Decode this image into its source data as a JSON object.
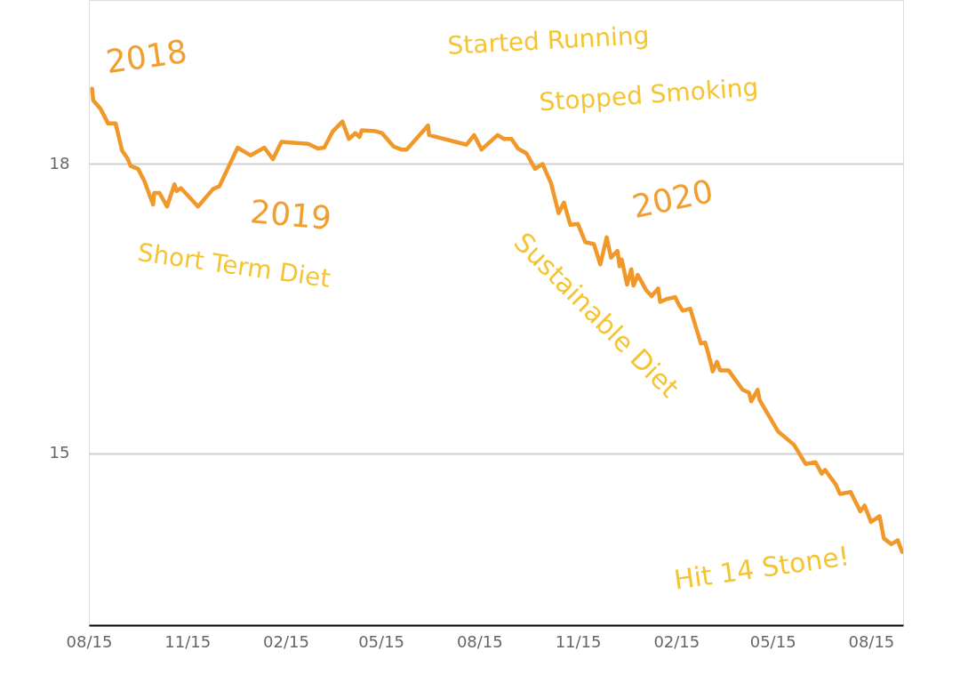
{
  "chart_data": {
    "type": "line",
    "x": [
      "2018-08-18",
      "2018-08-19",
      "2018-08-26",
      "2018-09-02",
      "2018-09-09",
      "2018-09-15",
      "2018-09-20",
      "2018-09-23",
      "2018-09-30",
      "2018-10-06",
      "2018-10-14",
      "2018-10-15",
      "2018-10-20",
      "2018-10-27",
      "2018-11-03",
      "2018-11-05",
      "2018-11-09",
      "2018-11-25",
      "2018-12-09",
      "2018-12-15",
      "2019-01-01",
      "2019-01-13",
      "2019-01-26",
      "2019-02-03",
      "2019-02-11",
      "2019-03-08",
      "2019-03-17",
      "2019-03-23",
      "2019-03-31",
      "2019-04-09",
      "2019-04-15",
      "2019-04-21",
      "2019-04-25",
      "2019-04-27",
      "2019-05-10",
      "2019-05-16",
      "2019-05-27",
      "2019-06-03",
      "2019-06-08",
      "2019-06-28",
      "2019-06-29",
      "2019-08-03",
      "2019-08-10",
      "2019-08-17",
      "2019-09-01",
      "2019-09-07",
      "2019-09-14",
      "2019-09-20",
      "2019-09-28",
      "2019-10-06",
      "2019-10-13",
      "2019-10-21",
      "2019-10-28",
      "2019-11-02",
      "2019-11-08",
      "2019-11-15",
      "2019-11-22",
      "2019-11-30",
      "2019-12-06",
      "2019-12-12",
      "2019-12-16",
      "2019-12-22",
      "2019-12-24",
      "2019-12-26",
      "2019-12-31",
      "2020-01-04",
      "2020-01-06",
      "2020-01-10",
      "2020-01-18",
      "2020-01-23",
      "2020-01-29",
      "2020-01-31",
      "2020-02-06",
      "2020-02-14",
      "2020-02-17",
      "2020-02-21",
      "2020-02-28",
      "2020-03-04",
      "2020-03-09",
      "2020-03-13",
      "2020-03-18",
      "2020-03-20",
      "2020-03-24",
      "2020-03-27",
      "2020-04-04",
      "2020-04-17",
      "2020-04-23",
      "2020-04-25",
      "2020-05-01",
      "2020-05-03",
      "2020-05-20",
      "2020-06-04",
      "2020-06-15",
      "2020-06-24",
      "2020-06-30",
      "2020-07-03",
      "2020-07-13",
      "2020-07-17",
      "2020-07-27",
      "2020-07-31",
      "2020-08-05",
      "2020-08-09",
      "2020-08-15",
      "2020-08-23",
      "2020-08-27",
      "2020-09-03",
      "2020-09-09",
      "2020-09-13"
    ],
    "series": [
      {
        "color": "#f0982a",
        "values": [
          18.78,
          18.66,
          18.57,
          18.42,
          18.42,
          18.14,
          18.06,
          17.98,
          17.95,
          17.82,
          17.58,
          17.7,
          17.7,
          17.56,
          17.79,
          17.72,
          17.75,
          17.56,
          17.74,
          17.77,
          18.17,
          18.09,
          18.17,
          18.05,
          18.23,
          18.21,
          18.16,
          18.17,
          18.34,
          18.44,
          18.26,
          18.32,
          18.28,
          18.35,
          18.34,
          18.32,
          18.18,
          18.15,
          18.15,
          18.4,
          18.3,
          18.2,
          18.3,
          18.15,
          18.3,
          18.26,
          18.26,
          18.16,
          18.11,
          17.95,
          18.0,
          17.8,
          17.49,
          17.6,
          17.37,
          17.38,
          17.19,
          17.17,
          16.96,
          17.24,
          17.03,
          17.1,
          16.94,
          17.01,
          16.75,
          16.91,
          16.74,
          16.85,
          16.69,
          16.63,
          16.71,
          16.57,
          16.6,
          16.62,
          16.55,
          16.48,
          16.5,
          16.32,
          16.14,
          16.15,
          15.95,
          15.85,
          15.95,
          15.86,
          15.86,
          15.66,
          15.63,
          15.54,
          15.66,
          15.55,
          15.23,
          15.09,
          14.89,
          14.91,
          14.79,
          14.83,
          14.68,
          14.58,
          14.6,
          14.51,
          14.4,
          14.46,
          14.29,
          14.35,
          14.12,
          14.06,
          14.1,
          13.98
        ]
      }
    ],
    "xlim": [
      "2018-08-15",
      "2020-09-14"
    ],
    "xticks": [
      {
        "value": "2018-08-15",
        "label": "08/15"
      },
      {
        "value": "2018-11-15",
        "label": "11/15"
      },
      {
        "value": "2019-02-15",
        "label": "02/15"
      },
      {
        "value": "2019-05-15",
        "label": "05/15"
      },
      {
        "value": "2019-08-15",
        "label": "08/15"
      },
      {
        "value": "2019-11-15",
        "label": "11/15"
      },
      {
        "value": "2020-02-15",
        "label": "02/15"
      },
      {
        "value": "2020-05-15",
        "label": "05/15"
      },
      {
        "value": "2020-08-15",
        "label": "08/15"
      }
    ],
    "ylim": [
      13.22,
      19.7
    ],
    "yticks": [
      15,
      18
    ],
    "grid": "y",
    "marker": "none",
    "line_style": "solid",
    "annotations": [
      "2018",
      "Started Running",
      "Stopped Smoking",
      "2019",
      "Short Term Diet",
      "2020",
      "Sustainable Diet",
      "Hit 14 Stone!"
    ]
  }
}
